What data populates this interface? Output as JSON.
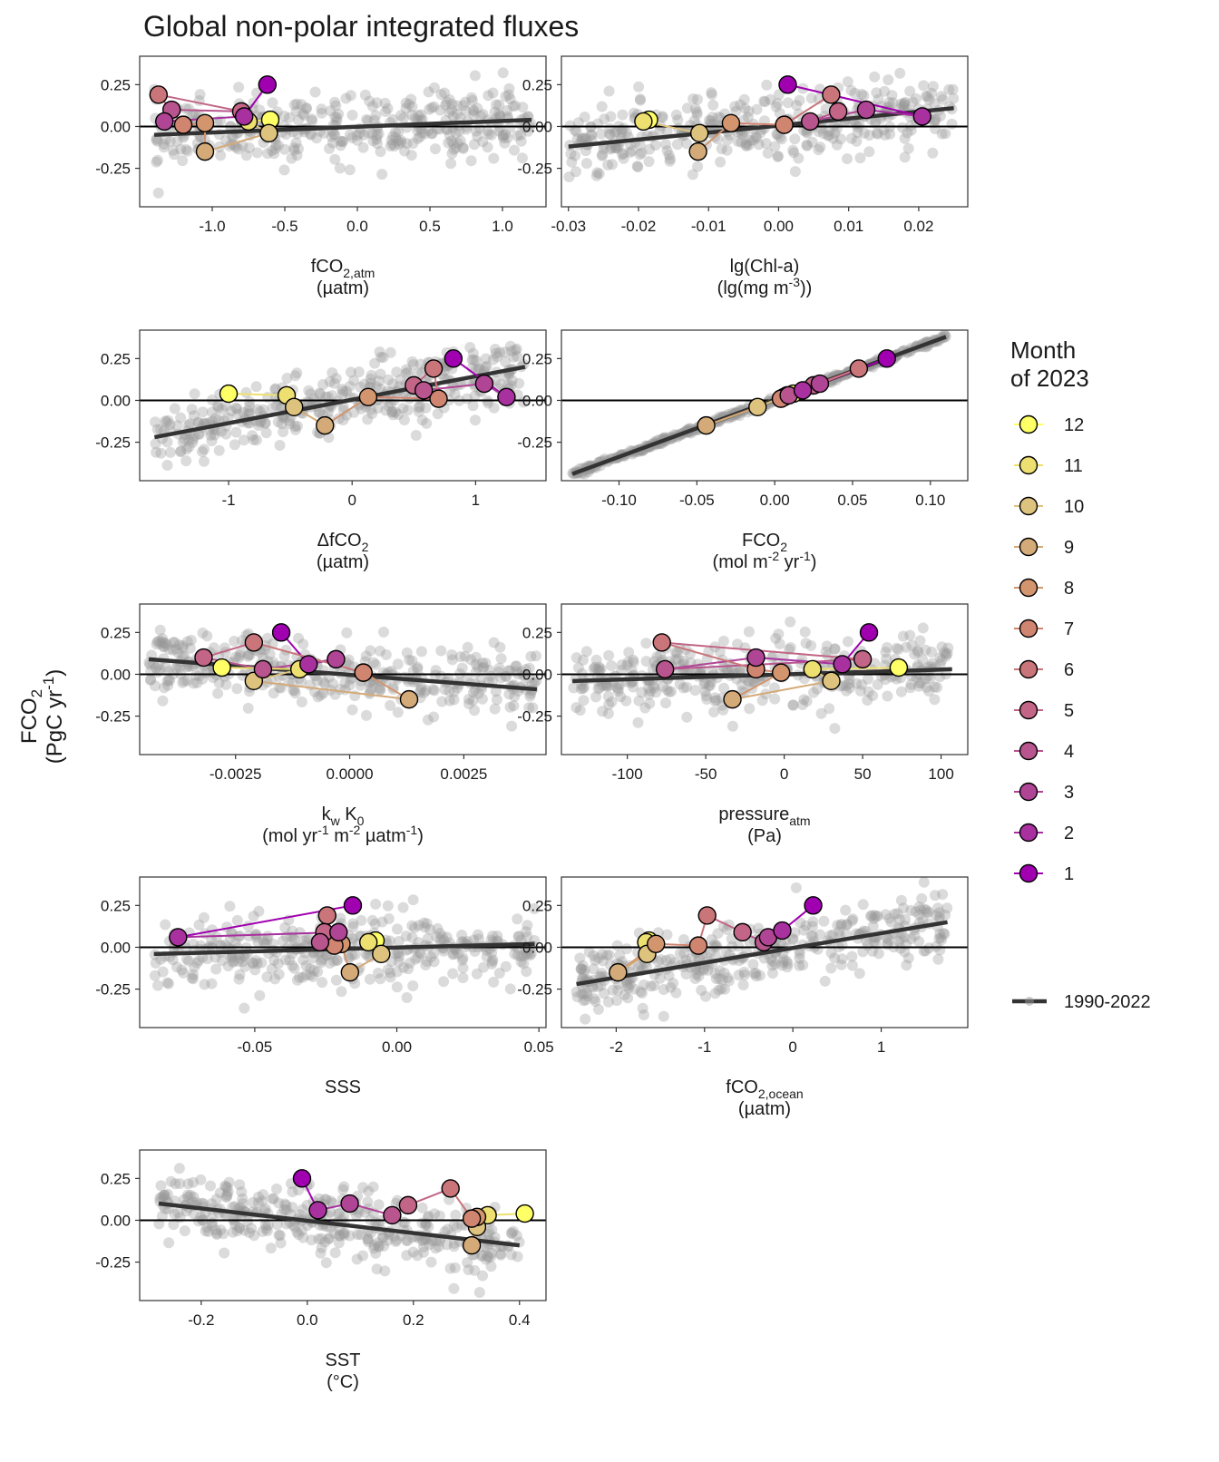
{
  "title": "Global non-polar integrated fluxes",
  "y_label": {
    "line1": "FCO",
    "sub": "2",
    "line2a": "(PgC yr",
    "sup": "-1",
    "line2b": ")"
  },
  "legend": {
    "title_line1": "Month",
    "title_line2": "of 2023",
    "months": [
      "12",
      "11",
      "10",
      "9",
      "8",
      "7",
      "6",
      "5",
      "4",
      "3",
      "2",
      "1"
    ],
    "month_colors": [
      "#FFFF66",
      "#EEE070",
      "#DDC37E",
      "#D4AA78",
      "#D2956E",
      "#D08570",
      "#C9757A",
      "#C26586",
      "#B8558E",
      "#B04596",
      "#A8309F",
      "#A000B0"
    ],
    "baseline_label": "1990-2022",
    "baseline_color": "#333333"
  },
  "colors": {
    "point": "#999999",
    "trend": "#333333",
    "zero_line": "#000000",
    "panel_border": "#333333"
  },
  "chart_data": [
    {
      "type": "scatter",
      "panel": "fco2-atm",
      "xlabel_main": "fCO",
      "xlabel_sub": "2,atm",
      "xlabel_line2": "(µatm)",
      "xlim": [
        -1.5,
        1.3
      ],
      "ylim": [
        -0.48,
        0.42
      ],
      "xticks": [
        -1.0,
        -0.5,
        0.0,
        0.5,
        1.0
      ],
      "xtick_labels": [
        "-1.0",
        "-0.5",
        "0.0",
        "0.5",
        "1.0"
      ],
      "yticks": [
        0.25,
        0,
        -0.25
      ],
      "ytick_labels": [
        "0.25",
        "0.00",
        "-0.25"
      ],
      "trend": [
        [
          -1.4,
          -0.05
        ],
        [
          1.2,
          0.04
        ]
      ],
      "months_2023": [
        {
          "month": 1,
          "x": -0.62,
          "y": 0.25
        },
        {
          "month": 2,
          "x": -0.78,
          "y": 0.06
        },
        {
          "month": 3,
          "x": -1.33,
          "y": 0.03
        },
        {
          "month": 4,
          "x": -1.28,
          "y": 0.1
        },
        {
          "month": 5,
          "x": -0.8,
          "y": 0.09
        },
        {
          "month": 6,
          "x": -1.37,
          "y": 0.19
        },
        {
          "month": 7,
          "x": -1.2,
          "y": 0.01
        },
        {
          "month": 8,
          "x": -1.05,
          "y": 0.02
        },
        {
          "month": 9,
          "x": -1.05,
          "y": -0.15
        },
        {
          "month": 10,
          "x": -0.61,
          "y": -0.04
        },
        {
          "month": 11,
          "x": -0.75,
          "y": 0.03
        },
        {
          "month": 12,
          "x": -0.6,
          "y": 0.04
        }
      ]
    },
    {
      "type": "scatter",
      "panel": "chl-a",
      "xlabel_main": "lg(Chl-a)",
      "xlabel_line2": "(lg(mg m",
      "xlabel_line2_sup": "-3",
      "xlabel_line2_end": "))",
      "xlim": [
        -0.031,
        0.027
      ],
      "ylim": [
        -0.48,
        0.42
      ],
      "xticks": [
        -0.03,
        -0.02,
        -0.01,
        0.0,
        0.01,
        0.02
      ],
      "xtick_labels": [
        "-0.03",
        "-0.02",
        "-0.01",
        "0.00",
        "0.01",
        "0.02"
      ],
      "yticks": [
        0.25,
        0,
        -0.25
      ],
      "ytick_labels": [
        "0.25",
        "0.00",
        "-0.25"
      ],
      "trend": [
        [
          -0.03,
          -0.12
        ],
        [
          0.025,
          0.11
        ]
      ],
      "months_2023": [
        {
          "month": 1,
          "x": 0.0013,
          "y": 0.25
        },
        {
          "month": 2,
          "x": 0.0205,
          "y": 0.06
        },
        {
          "month": 3,
          "x": 0.0125,
          "y": 0.1
        },
        {
          "month": 4,
          "x": 0.0045,
          "y": 0.03
        },
        {
          "month": 5,
          "x": 0.0085,
          "y": 0.09
        },
        {
          "month": 6,
          "x": 0.0075,
          "y": 0.19
        },
        {
          "month": 7,
          "x": 0.0008,
          "y": 0.01
        },
        {
          "month": 8,
          "x": -0.0068,
          "y": 0.02
        },
        {
          "month": 9,
          "x": -0.0115,
          "y": -0.15
        },
        {
          "month": 10,
          "x": -0.0113,
          "y": -0.04
        },
        {
          "month": 11,
          "x": -0.0193,
          "y": 0.03
        },
        {
          "month": 12,
          "x": -0.0185,
          "y": 0.04
        }
      ]
    },
    {
      "type": "scatter",
      "panel": "delta-fco2",
      "xlabel_main": "ΔfCO",
      "xlabel_sub": "2",
      "xlabel_line2": "(µatm)",
      "xlim": [
        -1.72,
        1.57
      ],
      "ylim": [
        -0.48,
        0.42
      ],
      "xticks": [
        -1,
        0,
        1
      ],
      "xtick_labels": [
        "-1",
        "0",
        "1"
      ],
      "yticks": [
        0.25,
        0,
        -0.25
      ],
      "ytick_labels": [
        "0.25",
        "0.00",
        "-0.25"
      ],
      "trend": [
        [
          -1.6,
          -0.22
        ],
        [
          1.4,
          0.2
        ]
      ],
      "months_2023": [
        {
          "month": 1,
          "x": 0.82,
          "y": 0.25
        },
        {
          "month": 2,
          "x": 1.25,
          "y": 0.02
        },
        {
          "month": 3,
          "x": 1.07,
          "y": 0.1
        },
        {
          "month": 4,
          "x": 0.58,
          "y": 0.06
        },
        {
          "month": 5,
          "x": 0.5,
          "y": 0.09
        },
        {
          "month": 6,
          "x": 0.66,
          "y": 0.19
        },
        {
          "month": 7,
          "x": 0.7,
          "y": 0.01
        },
        {
          "month": 8,
          "x": 0.13,
          "y": 0.02
        },
        {
          "month": 9,
          "x": -0.22,
          "y": -0.15
        },
        {
          "month": 10,
          "x": -0.47,
          "y": -0.04
        },
        {
          "month": 11,
          "x": -0.53,
          "y": 0.03
        },
        {
          "month": 12,
          "x": -1.0,
          "y": 0.04
        }
      ]
    },
    {
      "type": "scatter",
      "panel": "fco2-flux",
      "xlabel_main": "FCO",
      "xlabel_sub": "2",
      "xlabel_line2": "(mol m",
      "xlabel_line2_sup": "-2",
      "xlabel_line2_mid": " yr",
      "xlabel_line2_sup2": "-1",
      "xlabel_line2_end": ")",
      "xlim": [
        -0.137,
        0.124
      ],
      "ylim": [
        -0.48,
        0.42
      ],
      "xticks": [
        -0.1,
        -0.05,
        0.0,
        0.05,
        0.1
      ],
      "xtick_labels": [
        "-0.10",
        "-0.05",
        "0.00",
        "0.05",
        "0.10"
      ],
      "yticks": [
        0.25,
        0,
        -0.25
      ],
      "ytick_labels": [
        "0.25",
        "0.00",
        "-0.25"
      ],
      "trend": [
        [
          -0.13,
          -0.44
        ],
        [
          0.11,
          0.38
        ]
      ],
      "months_2023": [
        {
          "month": 1,
          "x": 0.072,
          "y": 0.25
        },
        {
          "month": 2,
          "x": 0.018,
          "y": 0.06
        },
        {
          "month": 3,
          "x": 0.029,
          "y": 0.1
        },
        {
          "month": 4,
          "x": 0.009,
          "y": 0.03
        },
        {
          "month": 5,
          "x": 0.025,
          "y": 0.09
        },
        {
          "month": 6,
          "x": 0.054,
          "y": 0.19
        },
        {
          "month": 7,
          "x": 0.004,
          "y": 0.01
        },
        {
          "month": 8,
          "x": 0.006,
          "y": 0.02
        },
        {
          "month": 9,
          "x": -0.044,
          "y": -0.15
        },
        {
          "month": 10,
          "x": -0.011,
          "y": -0.04
        },
        {
          "month": 11,
          "x": 0.008,
          "y": 0.03
        },
        {
          "month": 12,
          "x": 0.012,
          "y": 0.04
        }
      ]
    },
    {
      "type": "scatter",
      "panel": "kw-k0",
      "xlabel_main": "k",
      "xlabel_sub": "w",
      "xlabel_main2": " K",
      "xlabel_sub2": "0",
      "xlabel_line2": "(mol yr",
      "xlabel_line2_sup": "-1",
      "xlabel_line2_mid": " m",
      "xlabel_line2_sup2": "-2",
      "xlabel_line2_mid2": " µatm",
      "xlabel_line2_sup3": "-1",
      "xlabel_line2_end": ")",
      "xlim": [
        -0.0046,
        0.0043
      ],
      "ylim": [
        -0.48,
        0.42
      ],
      "xticks": [
        -0.0025,
        0.0,
        0.0025
      ],
      "xtick_labels": [
        "-0.0025",
        "0.0000",
        "0.0025"
      ],
      "yticks": [
        0.25,
        0,
        -0.25
      ],
      "ytick_labels": [
        "0.25",
        "0.00",
        "-0.25"
      ],
      "trend": [
        [
          -0.0044,
          0.09
        ],
        [
          0.0041,
          -0.09
        ]
      ],
      "months_2023": [
        {
          "month": 1,
          "x": -0.0015,
          "y": 0.25
        },
        {
          "month": 2,
          "x": -0.0009,
          "y": 0.06
        },
        {
          "month": 3,
          "x": -0.0003,
          "y": 0.09
        },
        {
          "month": 4,
          "x": -0.0019,
          "y": 0.03
        },
        {
          "month": 5,
          "x": -0.0032,
          "y": 0.1
        },
        {
          "month": 6,
          "x": -0.0021,
          "y": 0.19
        },
        {
          "month": 7,
          "x": 0.0003,
          "y": 0.01
        },
        {
          "month": 8,
          "x": 0.0003,
          "y": 0.01
        },
        {
          "month": 9,
          "x": 0.0013,
          "y": -0.15
        },
        {
          "month": 10,
          "x": -0.0021,
          "y": -0.04
        },
        {
          "month": 11,
          "x": -0.0011,
          "y": 0.03
        },
        {
          "month": 12,
          "x": -0.0028,
          "y": 0.04
        }
      ]
    },
    {
      "type": "scatter",
      "panel": "pressure-atm",
      "xlabel_main": "pressure",
      "xlabel_sub": "atm",
      "xlabel_line2": "(Pa)",
      "xlim": [
        -142,
        117
      ],
      "ylim": [
        -0.48,
        0.42
      ],
      "xticks": [
        -100,
        -50,
        0,
        50,
        100
      ],
      "xtick_labels": [
        "-100",
        "-50",
        "0",
        "50",
        "100"
      ],
      "yticks": [
        0.25,
        0,
        -0.25
      ],
      "ytick_labels": [
        "0.25",
        "0.00",
        "-0.25"
      ],
      "trend": [
        [
          -135,
          -0.04
        ],
        [
          107,
          0.03
        ]
      ],
      "months_2023": [
        {
          "month": 1,
          "x": 54,
          "y": 0.25
        },
        {
          "month": 2,
          "x": 37,
          "y": 0.06
        },
        {
          "month": 3,
          "x": -18,
          "y": 0.1
        },
        {
          "month": 4,
          "x": -76,
          "y": 0.03
        },
        {
          "month": 5,
          "x": 50,
          "y": 0.09
        },
        {
          "month": 6,
          "x": -78,
          "y": 0.19
        },
        {
          "month": 7,
          "x": -18,
          "y": 0.03
        },
        {
          "month": 8,
          "x": -2,
          "y": 0.01
        },
        {
          "month": 9,
          "x": -33,
          "y": -0.15
        },
        {
          "month": 10,
          "x": 30,
          "y": -0.04
        },
        {
          "month": 11,
          "x": 18,
          "y": 0.03
        },
        {
          "month": 12,
          "x": 73,
          "y": 0.04
        }
      ]
    },
    {
      "type": "scatter",
      "panel": "sss",
      "xlabel_main": "SSS",
      "xlabel_line2": "",
      "xlim": [
        -0.0905,
        0.0525
      ],
      "ylim": [
        -0.48,
        0.42
      ],
      "xticks": [
        -0.05,
        0.0,
        0.05
      ],
      "xtick_labels": [
        "-0.05",
        "0.00",
        "0.05"
      ],
      "yticks": [
        0.25,
        0,
        -0.25
      ],
      "ytick_labels": [
        "0.25",
        "0.00",
        "-0.25"
      ],
      "trend": [
        [
          -0.0855,
          -0.04
        ],
        [
          0.0485,
          0.02
        ]
      ],
      "months_2023": [
        {
          "month": 1,
          "x": -0.0155,
          "y": 0.25
        },
        {
          "month": 2,
          "x": -0.077,
          "y": 0.06
        },
        {
          "month": 3,
          "x": -0.0205,
          "y": 0.09
        },
        {
          "month": 4,
          "x": -0.027,
          "y": 0.03
        },
        {
          "month": 5,
          "x": -0.0255,
          "y": 0.09
        },
        {
          "month": 6,
          "x": -0.0245,
          "y": 0.19
        },
        {
          "month": 7,
          "x": -0.022,
          "y": 0.01
        },
        {
          "month": 8,
          "x": -0.0195,
          "y": 0.02
        },
        {
          "month": 9,
          "x": -0.0165,
          "y": -0.15
        },
        {
          "month": 10,
          "x": -0.0055,
          "y": -0.04
        },
        {
          "month": 11,
          "x": -0.01,
          "y": 0.03
        },
        {
          "month": 12,
          "x": -0.0075,
          "y": 0.04
        }
      ]
    },
    {
      "type": "scatter",
      "panel": "fco2-ocean",
      "xlabel_main": "fCO",
      "xlabel_sub": "2,ocean",
      "xlabel_line2": "(µatm)",
      "xlim": [
        -2.62,
        1.98
      ],
      "ylim": [
        -0.48,
        0.42
      ],
      "xticks": [
        -2,
        -1,
        0,
        1
      ],
      "xtick_labels": [
        "-2",
        "-1",
        "0",
        "1"
      ],
      "yticks": [
        0.25,
        0,
        -0.25
      ],
      "ytick_labels": [
        "0.25",
        "0.00",
        "-0.25"
      ],
      "trend": [
        [
          -2.45,
          -0.22
        ],
        [
          1.75,
          0.15
        ]
      ],
      "months_2023": [
        {
          "month": 1,
          "x": 0.23,
          "y": 0.25
        },
        {
          "month": 2,
          "x": -0.12,
          "y": 0.1
        },
        {
          "month": 3,
          "x": -0.28,
          "y": 0.06
        },
        {
          "month": 4,
          "x": -0.33,
          "y": 0.03
        },
        {
          "month": 5,
          "x": -0.57,
          "y": 0.09
        },
        {
          "month": 6,
          "x": -0.97,
          "y": 0.19
        },
        {
          "month": 7,
          "x": -1.07,
          "y": 0.01
        },
        {
          "month": 8,
          "x": -1.55,
          "y": 0.02
        },
        {
          "month": 9,
          "x": -1.98,
          "y": -0.15
        },
        {
          "month": 10,
          "x": -1.65,
          "y": -0.04
        },
        {
          "month": 11,
          "x": -1.66,
          "y": 0.03
        },
        {
          "month": 12,
          "x": -1.63,
          "y": 0.04
        }
      ]
    },
    {
      "type": "scatter",
      "panel": "sst",
      "xlabel_main": "SST",
      "xlabel_line2": "(°C)",
      "xlim": [
        -0.316,
        0.45
      ],
      "ylim": [
        -0.48,
        0.42
      ],
      "xticks": [
        -0.2,
        0.0,
        0.2,
        0.4
      ],
      "xtick_labels": [
        "-0.2",
        "0.0",
        "0.2",
        "0.4"
      ],
      "yticks": [
        0.25,
        0,
        -0.25
      ],
      "ytick_labels": [
        "0.25",
        "0.00",
        "-0.25"
      ],
      "trend": [
        [
          -0.28,
          0.1
        ],
        [
          0.4,
          -0.15
        ]
      ],
      "months_2023": [
        {
          "month": 1,
          "x": -0.01,
          "y": 0.25
        },
        {
          "month": 2,
          "x": 0.02,
          "y": 0.06
        },
        {
          "month": 3,
          "x": 0.08,
          "y": 0.1
        },
        {
          "month": 4,
          "x": 0.16,
          "y": 0.03
        },
        {
          "month": 5,
          "x": 0.19,
          "y": 0.09
        },
        {
          "month": 6,
          "x": 0.27,
          "y": 0.19
        },
        {
          "month": 7,
          "x": 0.31,
          "y": 0.01
        },
        {
          "month": 8,
          "x": 0.32,
          "y": 0.02
        },
        {
          "month": 9,
          "x": 0.31,
          "y": -0.15
        },
        {
          "month": 10,
          "x": 0.32,
          "y": -0.04
        },
        {
          "month": 11,
          "x": 0.34,
          "y": 0.03
        },
        {
          "month": 12,
          "x": 0.41,
          "y": 0.04
        }
      ]
    }
  ]
}
